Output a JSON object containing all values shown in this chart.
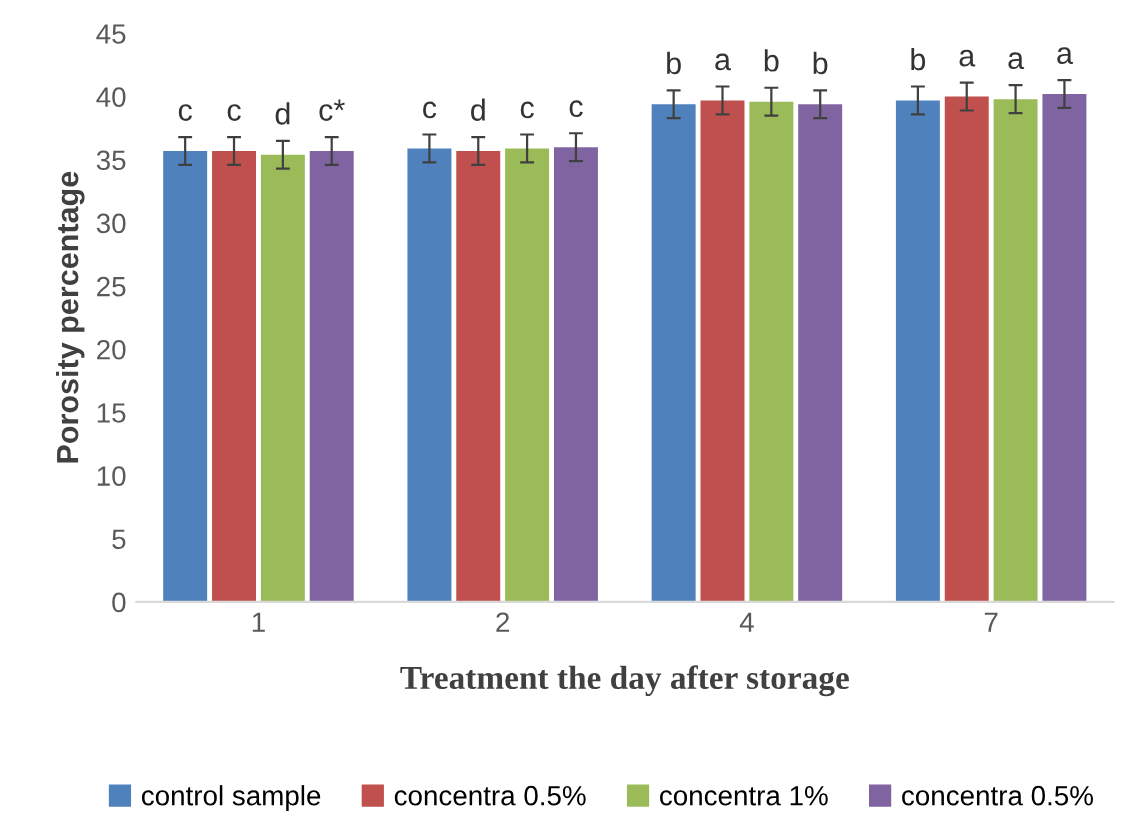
{
  "chart_data": {
    "type": "bar",
    "xlabel": "Treatment the day after storage",
    "ylabel": "Porosity percentage",
    "categories": [
      "1",
      "2",
      "4",
      "7"
    ],
    "series": [
      {
        "name": "control sample",
        "color": "#4f81bd",
        "values": [
          35.7,
          35.9,
          39.4,
          39.7
        ],
        "errors": [
          1.1,
          1.1,
          1.1,
          1.1
        ],
        "value_labels": [
          "c",
          "c",
          "b",
          "b"
        ]
      },
      {
        "name": "concentra 0.5%",
        "color": "#c0504d",
        "values": [
          35.7,
          35.7,
          39.7,
          40.0
        ],
        "errors": [
          1.1,
          1.1,
          1.1,
          1.1
        ],
        "value_labels": [
          "c",
          "d",
          "a",
          "a"
        ]
      },
      {
        "name": "concentra 1%",
        "color": "#9bbb59",
        "values": [
          35.4,
          35.9,
          39.6,
          39.8
        ],
        "errors": [
          1.1,
          1.1,
          1.1,
          1.1
        ],
        "value_labels": [
          "d",
          "c",
          "b",
          "a"
        ]
      },
      {
        "name": "concentra 0.5%",
        "color": "#8064a2",
        "values": [
          35.7,
          36.0,
          39.4,
          40.2
        ],
        "errors": [
          1.1,
          1.1,
          1.1,
          1.1
        ],
        "value_labels": [
          "c*",
          "c",
          "b",
          "a"
        ]
      }
    ],
    "ylim": [
      0,
      45
    ],
    "yticks": [
      0,
      5,
      10,
      15,
      20,
      25,
      30,
      35,
      40,
      45
    ],
    "grid": false,
    "legend": "bottom"
  }
}
